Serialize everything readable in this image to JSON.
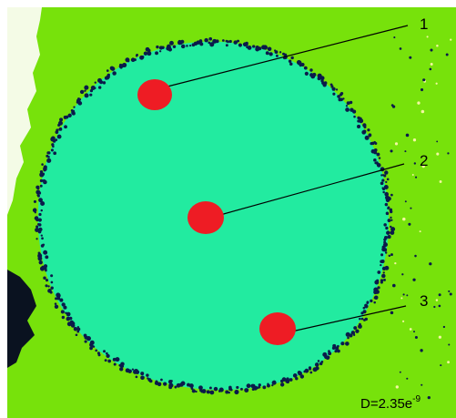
{
  "image": {
    "colors": {
      "background_phase": "#77e20b",
      "droplet_phase": "#22eba0",
      "boundary_dots": "#0b1a4a",
      "sample_spots": "#ee1c24",
      "left_edge": "#0a1220",
      "frame": "#ffffff"
    },
    "markers": [
      {
        "label": "1"
      },
      {
        "label": "2"
      },
      {
        "label": "3"
      }
    ],
    "readout": {
      "base": "D=2.35e",
      "exponent": "-9"
    }
  }
}
